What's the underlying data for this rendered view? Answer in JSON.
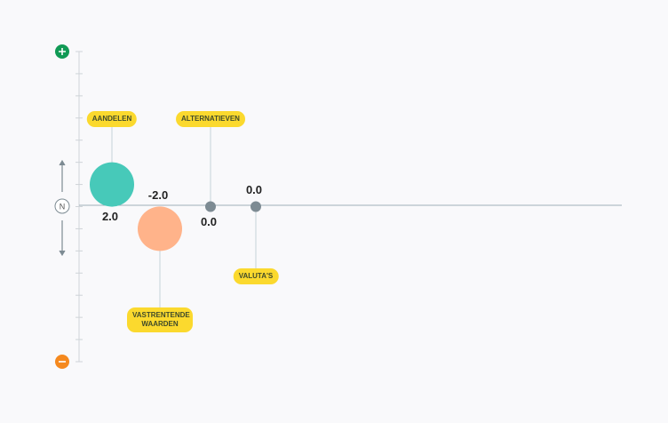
{
  "chart_data": {
    "type": "bubble",
    "categories": [
      "AANDELEN",
      "VASTRENTENDE WAARDEN",
      "ALTERNATIEVEN",
      "VALUTA'S"
    ],
    "values": [
      2,
      -2,
      0,
      0
    ],
    "value_labels": [
      "2.0",
      "-2.0",
      "0.0",
      "0.0"
    ],
    "colors": [
      "#47c9b9",
      "#ffb38a",
      "#7d8b93",
      "#7d8b93"
    ],
    "neutral_label": "N",
    "ylim": [
      -14,
      14
    ],
    "yticks": [
      -14,
      -12,
      -10,
      -8,
      -6,
      -4,
      -2,
      0,
      2,
      4,
      6,
      8,
      10,
      12,
      14
    ]
  }
}
